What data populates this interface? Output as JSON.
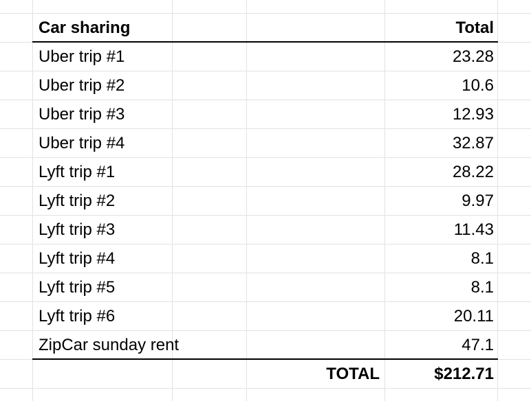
{
  "table": {
    "header": {
      "label": "Car sharing",
      "total": "Total"
    },
    "rows": [
      {
        "label": "Uber trip #1",
        "value": "23.28"
      },
      {
        "label": "Uber trip #2",
        "value": "10.6"
      },
      {
        "label": "Uber trip #3",
        "value": "12.93"
      },
      {
        "label": "Uber trip #4",
        "value": "32.87"
      },
      {
        "label": "Lyft trip #1",
        "value": "28.22"
      },
      {
        "label": "Lyft trip #2",
        "value": "9.97"
      },
      {
        "label": "Lyft trip #3",
        "value": "11.43"
      },
      {
        "label": "Lyft trip #4",
        "value": "8.1"
      },
      {
        "label": "Lyft trip #5",
        "value": "8.1"
      },
      {
        "label": "Lyft trip #6",
        "value": "20.11"
      },
      {
        "label": "ZipCar sunday rent",
        "value": "47.1"
      }
    ],
    "footer": {
      "label": "TOTAL",
      "value": "$212.71"
    }
  },
  "colors": {
    "gridline": "#e2e2e2",
    "border": "#000000",
    "text": "#000000"
  }
}
